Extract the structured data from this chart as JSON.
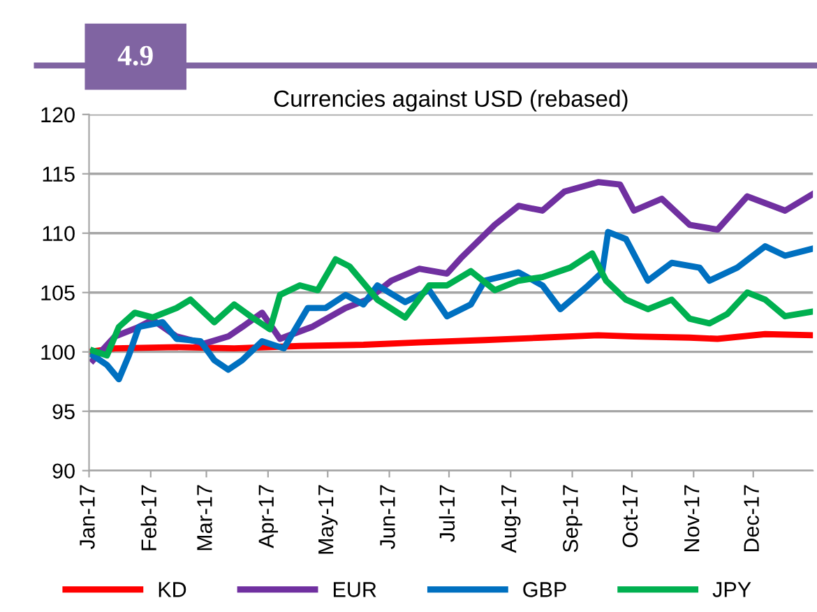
{
  "chart_data": {
    "type": "line",
    "title": "Currencies against USD (rebased)",
    "annotations": [
      "4.9"
    ],
    "xlim": [
      "2017-01-01",
      "2017-12-31"
    ],
    "xticks": [
      {
        "value": "2017-01-01",
        "label": "Jan-17"
      },
      {
        "value": "2017-02-01",
        "label": "Feb-17"
      },
      {
        "value": "2017-03-01",
        "label": "Mar-17"
      },
      {
        "value": "2017-04-01",
        "label": "Apr-17"
      },
      {
        "value": "2017-05-01",
        "label": "May-17"
      },
      {
        "value": "2017-06-01",
        "label": "Jun-17"
      },
      {
        "value": "2017-07-01",
        "label": "Jul-17"
      },
      {
        "value": "2017-08-01",
        "label": "Aug-17"
      },
      {
        "value": "2017-09-01",
        "label": "Sep-17"
      },
      {
        "value": "2017-10-01",
        "label": "Oct-17"
      },
      {
        "value": "2017-11-01",
        "label": "Nov-17"
      },
      {
        "value": "2017-12-01",
        "label": "Dec-17"
      }
    ],
    "ylim": [
      90,
      120
    ],
    "yticks": [
      90,
      95,
      100,
      105,
      110,
      115,
      120
    ],
    "grid": "y",
    "legend": "bottom",
    "marker": "none",
    "line_style": "solid",
    "series": [
      {
        "name": "KD",
        "color": "#ff0000",
        "x": [
          "2017-01-01",
          "2017-01-14",
          "2017-02-14",
          "2017-03-15",
          "2017-04-17",
          "2017-05-19",
          "2017-06-16",
          "2017-07-19",
          "2017-08-17",
          "2017-09-14",
          "2017-10-02",
          "2017-10-30",
          "2017-11-13",
          "2017-12-07",
          "2017-12-31"
        ],
        "values": [
          100,
          100.3,
          100.4,
          100.3,
          100.5,
          100.6,
          100.8,
          101,
          101.2,
          101.4,
          101.3,
          101.2,
          101.1,
          101.5,
          101.4
        ]
      },
      {
        "name": "EUR",
        "color": "#7030a0",
        "x": [
          "2017-01-03",
          "2017-01-14",
          "2017-01-26",
          "2017-02-02",
          "2017-02-14",
          "2017-02-28",
          "2017-03-12",
          "2017-03-19",
          "2017-03-29",
          "2017-04-07",
          "2017-04-23",
          "2017-05-10",
          "2017-05-21",
          "2017-06-02",
          "2017-06-16",
          "2017-06-30",
          "2017-07-07",
          "2017-07-24",
          "2017-08-05",
          "2017-08-17",
          "2017-08-28",
          "2017-09-14",
          "2017-09-25",
          "2017-10-02",
          "2017-10-16",
          "2017-10-30",
          "2017-11-13",
          "2017-11-28",
          "2017-12-17",
          "2017-12-31"
        ],
        "values": [
          99.3,
          101.3,
          102.1,
          102.7,
          101.3,
          100.7,
          101.3,
          102.1,
          103.3,
          101.1,
          102.1,
          103.7,
          104.4,
          106,
          107,
          106.6,
          107.9,
          110.7,
          112.3,
          111.9,
          113.5,
          114.3,
          114.1,
          111.9,
          112.9,
          110.7,
          110.3,
          113.1,
          111.9,
          113.3
        ]
      },
      {
        "name": "GBP",
        "color": "#0070c0",
        "x": [
          "2017-01-03",
          "2017-01-10",
          "2017-01-16",
          "2017-01-21",
          "2017-01-26",
          "2017-02-07",
          "2017-02-14",
          "2017-02-26",
          "2017-03-05",
          "2017-03-12",
          "2017-03-19",
          "2017-03-29",
          "2017-04-09",
          "2017-04-21",
          "2017-04-30",
          "2017-05-10",
          "2017-05-19",
          "2017-05-26",
          "2017-06-09",
          "2017-06-21",
          "2017-06-30",
          "2017-07-12",
          "2017-07-19",
          "2017-08-05",
          "2017-08-17",
          "2017-08-26",
          "2017-09-09",
          "2017-09-16",
          "2017-09-19",
          "2017-09-28",
          "2017-10-09",
          "2017-10-21",
          "2017-11-04",
          "2017-11-09",
          "2017-11-23",
          "2017-12-07",
          "2017-12-17",
          "2017-12-31"
        ],
        "values": [
          99.7,
          98.9,
          97.7,
          99.7,
          102.1,
          102.5,
          101.1,
          100.9,
          99.3,
          98.5,
          99.3,
          100.9,
          100.3,
          103.7,
          103.7,
          104.8,
          104,
          105.6,
          104.2,
          105.2,
          103,
          104,
          106,
          106.7,
          105.6,
          103.6,
          105.6,
          106.7,
          110.1,
          109.5,
          106,
          107.5,
          107.1,
          106,
          107.1,
          108.9,
          108.1,
          108.7
        ]
      },
      {
        "name": "JPY",
        "color": "#00b050",
        "x": [
          "2017-01-03",
          "2017-01-10",
          "2017-01-16",
          "2017-01-24",
          "2017-02-02",
          "2017-02-14",
          "2017-02-21",
          "2017-03-05",
          "2017-03-15",
          "2017-03-24",
          "2017-04-02",
          "2017-04-07",
          "2017-04-17",
          "2017-04-26",
          "2017-05-05",
          "2017-05-12",
          "2017-05-26",
          "2017-06-09",
          "2017-06-21",
          "2017-06-30",
          "2017-07-12",
          "2017-07-24",
          "2017-08-05",
          "2017-08-17",
          "2017-08-31",
          "2017-09-11",
          "2017-09-18",
          "2017-09-28",
          "2017-10-09",
          "2017-10-21",
          "2017-10-30",
          "2017-11-09",
          "2017-11-18",
          "2017-11-28",
          "2017-12-07",
          "2017-12-17",
          "2017-12-31"
        ],
        "values": [
          100.1,
          99.7,
          102.1,
          103.3,
          102.9,
          103.7,
          104.4,
          102.5,
          104,
          102.9,
          101.9,
          104.8,
          105.6,
          105.2,
          107.8,
          107.2,
          104.4,
          102.9,
          105.6,
          105.6,
          106.8,
          105.2,
          106,
          106.3,
          107.1,
          108.3,
          106,
          104.4,
          103.6,
          104.4,
          102.8,
          102.4,
          103.2,
          105,
          104.4,
          103,
          103.4
        ]
      }
    ]
  }
}
